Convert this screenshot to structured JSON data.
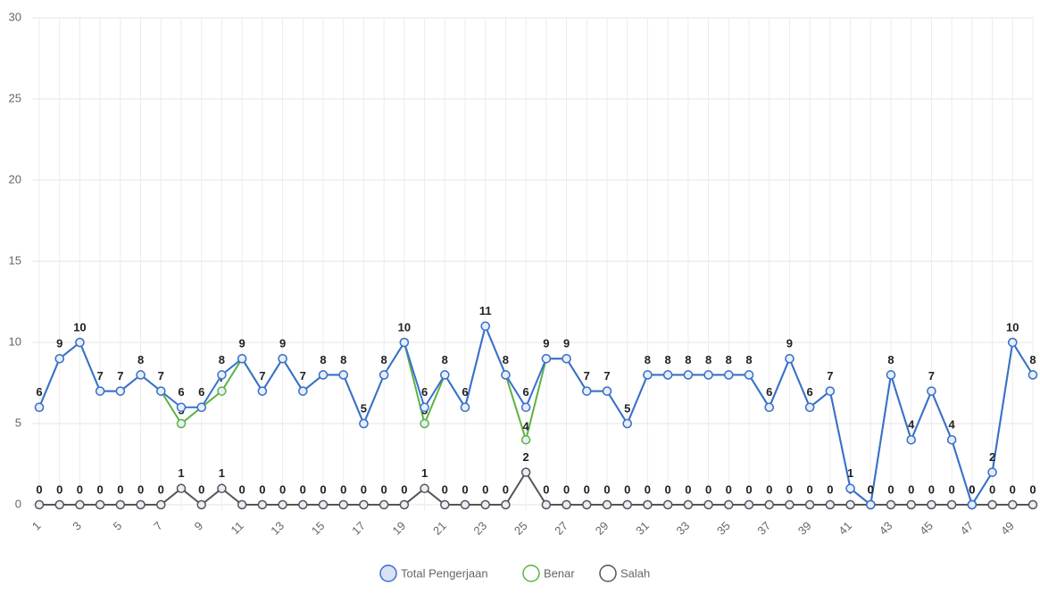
{
  "chart_data": {
    "type": "line",
    "categories": [
      1,
      null,
      3,
      null,
      5,
      null,
      7,
      null,
      9,
      null,
      11,
      null,
      13,
      null,
      15,
      null,
      17,
      null,
      19,
      null,
      21,
      null,
      23,
      null,
      25,
      null,
      27,
      null,
      29,
      null,
      31,
      null,
      33,
      null,
      35,
      null,
      37,
      null,
      39,
      null,
      41,
      null,
      43,
      null,
      45,
      null,
      47,
      null,
      49,
      null
    ],
    "series": [
      {
        "name": "Total Pengerjaan",
        "color": "#3a6fd1",
        "values": [
          6,
          9,
          10,
          7,
          7,
          8,
          7,
          6,
          6,
          8,
          9,
          7,
          9,
          7,
          8,
          8,
          5,
          8,
          10,
          6,
          8,
          6,
          11,
          8,
          6,
          9,
          9,
          7,
          7,
          5,
          8,
          8,
          8,
          8,
          8,
          8,
          6,
          9,
          6,
          7,
          1,
          0,
          8,
          4,
          7,
          4,
          0,
          2,
          10,
          8
        ]
      },
      {
        "name": "Benar",
        "color": "#5cb340",
        "values": [
          6,
          9,
          10,
          7,
          7,
          8,
          7,
          5,
          6,
          7,
          9,
          7,
          9,
          7,
          8,
          8,
          5,
          8,
          10,
          5,
          8,
          6,
          11,
          8,
          4,
          9,
          9,
          7,
          7,
          5,
          8,
          8,
          8,
          8,
          8,
          8,
          6,
          9,
          6,
          7,
          1,
          0,
          8,
          4,
          7,
          4,
          0,
          2,
          10,
          8
        ]
      },
      {
        "name": "Salah",
        "color": "#555555",
        "values": [
          0,
          0,
          0,
          0,
          0,
          0,
          0,
          1,
          0,
          1,
          0,
          0,
          0,
          0,
          0,
          0,
          0,
          0,
          0,
          1,
          0,
          0,
          0,
          0,
          2,
          0,
          0,
          0,
          0,
          0,
          0,
          0,
          0,
          0,
          0,
          0,
          0,
          0,
          0,
          0,
          0,
          0,
          0,
          0,
          0,
          0,
          0,
          0,
          0,
          0
        ]
      }
    ],
    "ylim": [
      0,
      30
    ],
    "yticks": [
      0,
      5,
      10,
      15,
      20,
      25,
      30
    ],
    "grid": true,
    "legend": "bottom"
  }
}
